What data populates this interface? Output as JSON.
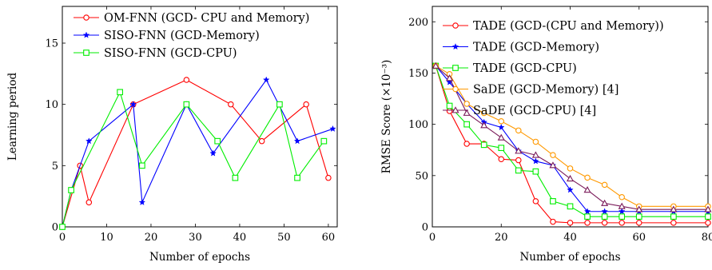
{
  "chart_data": [
    {
      "type": "line",
      "xlabel": "Number of epochs",
      "ylabel": "Learning period",
      "xlim": [
        0,
        62
      ],
      "ylim": [
        0,
        18
      ],
      "xticks": [
        "0",
        "10",
        "20",
        "30",
        "40",
        "50",
        "60"
      ],
      "yticks": [
        "0",
        "5",
        "10",
        "15"
      ],
      "legend_position": "top-left",
      "grid": false,
      "series": [
        {
          "name": "OM-FNN (GCD- CPU and Memory)",
          "color": "#ff0000",
          "marker": "circle",
          "x": [
            0,
            4,
            6,
            16,
            28,
            38,
            45,
            55,
            60
          ],
          "y": [
            0,
            5,
            2,
            10,
            12,
            10,
            7,
            10,
            4
          ]
        },
        {
          "name": "SISO-FNN (GCD-Memory)",
          "color": "#0000ff",
          "marker": "star",
          "x": [
            0,
            2,
            6,
            16,
            18,
            28,
            34,
            46,
            53,
            61
          ],
          "y": [
            0,
            3,
            7,
            10,
            2,
            10,
            6,
            12,
            7,
            8
          ]
        },
        {
          "name": "SISO-FNN (GCD-CPU)",
          "color": "#00ee00",
          "marker": "square",
          "x": [
            0,
            2,
            13,
            18,
            28,
            35,
            39,
            49,
            53,
            59
          ],
          "y": [
            0,
            3,
            11,
            5,
            10,
            7,
            4,
            10,
            4,
            7
          ]
        }
      ]
    },
    {
      "type": "line",
      "xlabel": "Number of epochs",
      "ylabel": "RMSE Score (×10⁻³)",
      "xlim": [
        0,
        80
      ],
      "ylim": [
        0,
        215
      ],
      "xticks": [
        "0",
        "20",
        "40",
        "60",
        "80"
      ],
      "yticks": [
        "0",
        "50",
        "100",
        "150",
        "200"
      ],
      "legend_position": "top-right",
      "grid": false,
      "series": [
        {
          "name": "TADE (GCD-(CPU and Memory))",
          "color": "#ff0000",
          "marker": "circle",
          "x": [
            1,
            5,
            10,
            15,
            20,
            25,
            30,
            35,
            40,
            45,
            50,
            55,
            60,
            70,
            80
          ],
          "y": [
            157,
            113,
            81,
            81,
            66,
            65,
            25,
            5,
            4,
            4,
            4,
            4,
            4,
            4,
            4
          ]
        },
        {
          "name": "TADE (GCD-Memory)",
          "color": "#0000ff",
          "marker": "star",
          "x": [
            1,
            5,
            10,
            15,
            20,
            25,
            30,
            35,
            40,
            45,
            50,
            55,
            60,
            70,
            80
          ],
          "y": [
            157,
            141,
            120,
            102,
            97,
            74,
            64,
            60,
            36,
            15,
            15,
            15,
            15,
            15,
            15
          ]
        },
        {
          "name": "TADE (GCD-CPU)",
          "color": "#00ee00",
          "marker": "square",
          "x": [
            1,
            5,
            10,
            15,
            20,
            25,
            30,
            35,
            40,
            45,
            50,
            55,
            60,
            70,
            80
          ],
          "y": [
            157,
            118,
            100,
            80,
            77,
            55,
            54,
            25,
            20,
            10,
            10,
            10,
            10,
            10,
            10
          ]
        },
        {
          "name": "SaDE (GCD-Memory) [4]",
          "color": "#ff9900",
          "marker": "circle",
          "x": [
            1,
            5,
            10,
            15,
            20,
            25,
            30,
            35,
            40,
            45,
            50,
            55,
            60,
            70,
            80
          ],
          "y": [
            157,
            149,
            120,
            111,
            103,
            94,
            83,
            70,
            57,
            48,
            41,
            29,
            20,
            20,
            20
          ]
        },
        {
          "name": "SaDE (GCD-CPU) [4]",
          "color": "#7a1a5a",
          "marker": "triangle",
          "x": [
            1,
            5,
            10,
            15,
            20,
            25,
            30,
            35,
            40,
            45,
            50,
            55,
            60,
            70,
            80
          ],
          "y": [
            157,
            145,
            111,
            99,
            87,
            74,
            70,
            60,
            47,
            36,
            23,
            20,
            17,
            17,
            17
          ]
        }
      ]
    }
  ]
}
